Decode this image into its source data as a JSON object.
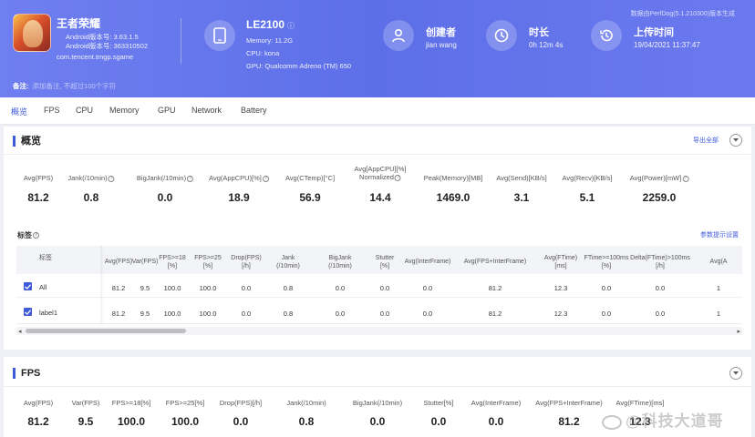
{
  "header": {
    "top_note": "数据由PerfDog(5.1.210300)版本生成",
    "game": {
      "name": "王者荣耀",
      "android_version": "Android版本号: 3.63.1.5",
      "android_build": "Android版本号: 363310502",
      "package": "com.tencent.tmgp.sgame"
    },
    "device": {
      "name": "LE2100",
      "info_mark": "ⓘ",
      "memory": "Memory: 11.2G",
      "cpu": "CPU: kona",
      "gpu": "GPU: Qualcomm Adreno (TM) 650"
    },
    "creator": {
      "label": "创建者",
      "value": "jian wang"
    },
    "duration": {
      "label": "时长",
      "value": "0h 12m 4s"
    },
    "upload_time": {
      "label": "上传时间",
      "value": "19/04/2021 11:37:47"
    },
    "remark": {
      "label": "备注:",
      "text": "添加备注, 不超过100个字符"
    }
  },
  "tabs": [
    {
      "label": "概览",
      "active": true
    },
    {
      "label": "FPS"
    },
    {
      "label": "CPU"
    },
    {
      "label": "Memory"
    },
    {
      "label": "GPU"
    },
    {
      "label": "Network"
    },
    {
      "label": "Battery"
    }
  ],
  "overview": {
    "title": "概览",
    "export_label": "导出全部",
    "metrics": [
      {
        "label": "Avg(FPS)",
        "value": "81.2"
      },
      {
        "label": "Jank(/10min)",
        "value": "0.8",
        "help": true
      },
      {
        "label": "BigJank(/10min)",
        "value": "0.0",
        "help": true
      },
      {
        "label": "Avg(AppCPU)[%]",
        "value": "18.9",
        "help": true
      },
      {
        "label": "Avg(CTemp)[°C]",
        "value": "56.9"
      },
      {
        "label": "Avg[AppCPU][%]",
        "label2": "Normalized",
        "value": "14.4",
        "help": true
      },
      {
        "label": "Peak(Memory)[MB]",
        "value": "1469.0"
      },
      {
        "label": "Avg(Send)[KB/s]",
        "value": "3.1"
      },
      {
        "label": "Avg(Recv)[KB/s]",
        "value": "5.1"
      },
      {
        "label": "Avg(Power)[mW]",
        "value": "2259.0",
        "help": true
      }
    ],
    "tags_title": "标签",
    "param_link": "参数提示设置",
    "table": {
      "col0": "标签",
      "headers": [
        [
          "Avg(FPS)"
        ],
        [
          "Var(FPS)"
        ],
        [
          "FPS>=18",
          "[%]"
        ],
        [
          "FPS>=25",
          "[%]"
        ],
        [
          "Drop(FPS)",
          "[/h]"
        ],
        [
          "Jank",
          "(/10min)"
        ],
        [
          "BigJank",
          "(/10min)"
        ],
        [
          "Stutter",
          "[%]"
        ],
        [
          "Avg(InterFrame)"
        ],
        [
          "Avg(FPS+InterFrame)"
        ],
        [
          "Avg(FTime)",
          "[ms]"
        ],
        [
          "FTime>=100ms",
          "[%]"
        ],
        [
          "Delta(FTime)>100ms",
          "[/h]"
        ],
        [
          "Avg(A"
        ]
      ],
      "rows": [
        {
          "name": "All",
          "values": [
            "81.2",
            "9.5",
            "100.0",
            "100.0",
            "0.0",
            "0.8",
            "0.0",
            "0.0",
            "0.0",
            "81.2",
            "12.3",
            "0.0",
            "0.0",
            "1"
          ]
        },
        {
          "name": "label1",
          "values": [
            "81.2",
            "9.5",
            "100.0",
            "100.0",
            "0.0",
            "0.8",
            "0.0",
            "0.0",
            "0.0",
            "81.2",
            "12.3",
            "0.0",
            "0.0",
            "1"
          ]
        }
      ]
    }
  },
  "fps_section": {
    "title": "FPS",
    "metrics": [
      {
        "label": "Avg(FPS)",
        "value": "81.2"
      },
      {
        "label": "Var(FPS)",
        "value": "9.5"
      },
      {
        "label": "FPS>=18[%]",
        "value": "100.0"
      },
      {
        "label": "FPS>=25[%]",
        "value": "100.0"
      },
      {
        "label": "Drop(FPS)[/h]",
        "value": "0.0"
      },
      {
        "label": "Jank(/10min)",
        "value": "0.8"
      },
      {
        "label": "BigJank(/10min)",
        "value": "0.0"
      },
      {
        "label": "Stutter[%]",
        "value": "0.0"
      },
      {
        "label": "Avg(InterFrame)",
        "value": "0.0"
      },
      {
        "label": "Avg(FPS+InterFrame)",
        "value": "81.2"
      },
      {
        "label": "Avg(FTime)[ms]",
        "value": "12.3"
      }
    ]
  },
  "watermark": "@科技大道哥",
  "colors": {
    "header_start": "#6f7ff0",
    "header_end": "#5d6fe8",
    "accent": "#3f5bd9"
  }
}
